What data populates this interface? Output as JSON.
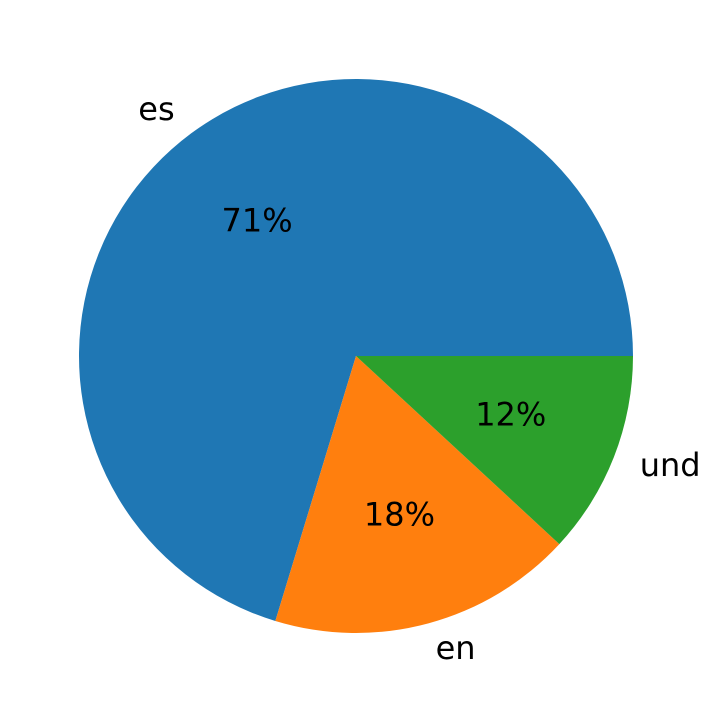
{
  "chart_data": {
    "type": "pie",
    "categories": [
      "es",
      "en",
      "und"
    ],
    "values": [
      71,
      18,
      12
    ],
    "value_labels": [
      "71%",
      "18%",
      "12%"
    ],
    "colors": [
      "#1f77b4",
      "#ff7f0e",
      "#2ca02c"
    ]
  }
}
